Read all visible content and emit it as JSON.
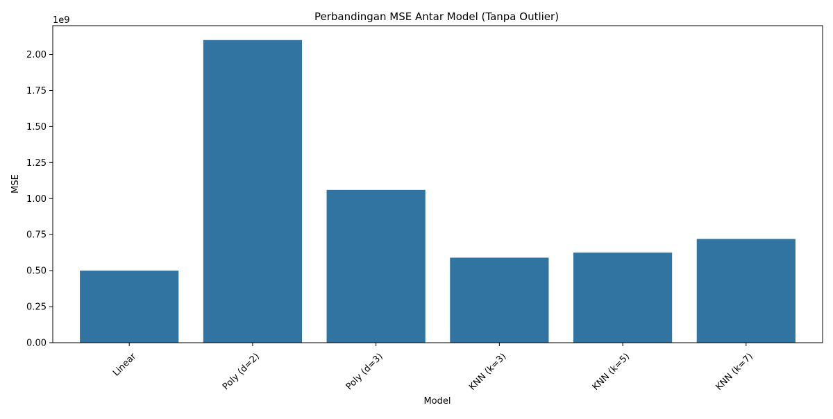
{
  "chart_data": {
    "type": "bar",
    "title": "Perbandingan MSE Antar Model (Tanpa Outlier)",
    "xlabel": "Model",
    "ylabel": "MSE",
    "offset_label": "1e9",
    "categories": [
      "Linear",
      "Poly (d=2)",
      "Poly (d=3)",
      "KNN (k=3)",
      "KNN (k=5)",
      "KNN (k=7)"
    ],
    "values": [
      0.5,
      2.1,
      1.06,
      0.59,
      0.625,
      0.72
    ],
    "value_scale": 1000000000,
    "ylim": [
      0,
      2.2
    ],
    "yticks": [
      0.0,
      0.25,
      0.5,
      0.75,
      1.0,
      1.25,
      1.5,
      1.75,
      2.0
    ],
    "ytick_labels": [
      "0.00",
      "0.25",
      "0.50",
      "0.75",
      "1.00",
      "1.25",
      "1.50",
      "1.75",
      "2.00"
    ],
    "bar_color": "#3274a1",
    "grid": false,
    "legend": "none",
    "xtick_rotation_deg": 45
  }
}
